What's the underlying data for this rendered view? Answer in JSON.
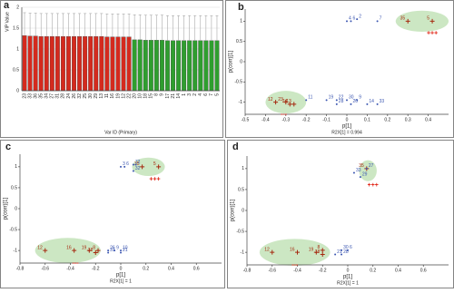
{
  "chart_data": [
    {
      "type": "bar",
      "panel": "a",
      "xlabel": "Var ID (Primary)",
      "ylabel": "VIP Value",
      "categories": [
        "23",
        "33",
        "36",
        "35",
        "34",
        "27",
        "31",
        "28",
        "24",
        "26",
        "32",
        "25",
        "30",
        "29",
        "13",
        "11",
        "16",
        "19",
        "12",
        "22",
        "20",
        "10",
        "18",
        "15",
        "8",
        "9",
        "17",
        "21",
        "14",
        "1",
        "3",
        "2",
        "4",
        "6",
        "7",
        "5"
      ],
      "series": [
        {
          "color": "#d42a1e",
          "values": [
            1.32,
            1.31,
            1.31,
            1.3,
            1.3,
            1.3,
            1.3,
            1.3,
            1.3,
            1.3,
            1.3,
            1.3,
            1.3,
            1.3,
            1.3,
            1.29,
            1.29,
            1.29,
            1.29,
            1.29,
            null,
            null,
            null,
            null,
            null,
            null,
            null,
            null,
            null,
            null,
            null,
            null,
            null,
            null,
            null,
            null
          ],
          "errors": [
            0.55,
            0.55,
            0.55,
            0.55,
            0.55,
            0.55,
            0.55,
            0.55,
            0.55,
            0.55,
            0.55,
            0.55,
            0.55,
            0.55,
            0.55,
            0.55,
            0.55,
            0.55,
            0.55,
            0.55,
            null,
            null,
            null,
            null,
            null,
            null,
            null,
            null,
            null,
            null,
            null,
            null,
            null,
            null,
            null,
            null
          ]
        },
        {
          "color": "#2f9e2f",
          "values": [
            null,
            null,
            null,
            null,
            null,
            null,
            null,
            null,
            null,
            null,
            null,
            null,
            null,
            null,
            null,
            null,
            null,
            null,
            null,
            null,
            1.22,
            1.22,
            1.21,
            1.21,
            1.21,
            1.21,
            1.2,
            1.2,
            1.2,
            1.2,
            1.2,
            1.2,
            1.2,
            1.2,
            1.2,
            1.2
          ],
          "errors": [
            null,
            null,
            null,
            null,
            null,
            null,
            null,
            null,
            null,
            null,
            null,
            null,
            null,
            null,
            null,
            null,
            null,
            null,
            null,
            null,
            0.6,
            0.6,
            0.6,
            0.6,
            0.6,
            0.6,
            0.6,
            0.6,
            0.6,
            0.6,
            0.6,
            0.6,
            0.6,
            0.6,
            0.6,
            0.6
          ]
        }
      ],
      "ylim": [
        0,
        2
      ],
      "yticks": [
        0,
        0.5,
        1,
        1.5,
        2
      ],
      "grid": true
    },
    {
      "type": "scatter",
      "panel": "b",
      "xlabel": "p[1]",
      "ylabel": "p(corr)[1]",
      "note": "R2X[1] = 0.994",
      "xlim": [
        -0.5,
        0.5
      ],
      "xticks": [
        -0.5,
        -0.4,
        -0.3,
        -0.2,
        -0.1,
        0,
        0.1,
        0.2,
        0.3,
        0.4
      ],
      "ylim": [
        -1.3,
        1.3
      ],
      "yticks": [
        -1,
        -0.5,
        0,
        0.5,
        1
      ],
      "annotations": [
        "+++",
        "---"
      ],
      "series": [
        {
          "color": "#a52a10",
          "marker": "cross",
          "x": [
            -0.35,
            -0.3,
            -0.28,
            -0.26,
            0.3,
            0.42
          ],
          "values": [
            -1,
            -1,
            -1.05,
            -1.05,
            1,
            1
          ],
          "labels": [
            "12",
            "23",
            "24",
            "13",
            "35",
            "5"
          ]
        },
        {
          "color": "#3a55b0",
          "marker": "dot",
          "x": [
            0.0,
            0.02,
            0.05,
            0.15,
            -0.2,
            -0.1,
            -0.05,
            0.0,
            0.05,
            0.1,
            0.15,
            -0.05,
            0.02
          ],
          "values": [
            1,
            1,
            1.05,
            1,
            -0.95,
            -0.95,
            -0.95,
            -0.95,
            -0.95,
            -1.05,
            -1.05,
            -1.05,
            -1.05
          ],
          "labels": [
            "4",
            "6",
            "2",
            "7",
            "11",
            "19",
            "22",
            "30",
            "9",
            "14",
            "33",
            "28",
            "20"
          ]
        }
      ]
    },
    {
      "type": "scatter",
      "panel": "c",
      "xlabel": "p[1]",
      "ylabel": "p(corr)[1]",
      "note": "R2X[1] = 1",
      "xlim": [
        -0.8,
        0.8
      ],
      "xticks": [
        -0.8,
        -0.6,
        -0.4,
        -0.2,
        0,
        0.2,
        0.4,
        0.6
      ],
      "ylim": [
        -1.3,
        1.3
      ],
      "yticks": [
        -1,
        -0.5,
        0,
        0.5,
        1
      ],
      "annotations": [
        "+++",
        "---"
      ],
      "series": [
        {
          "color": "#a52a10",
          "marker": "cross",
          "x": [
            -0.6,
            -0.37,
            -0.25,
            -0.18,
            -0.2,
            0.17,
            0.3
          ],
          "values": [
            -1,
            -1,
            -1,
            -1,
            -1.05,
            1,
            1
          ],
          "labels": [
            "12",
            "16",
            "19",
            "8",
            "18",
            "35",
            "5"
          ]
        },
        {
          "color": "#3a55b0",
          "marker": "dot",
          "x": [
            0.0,
            0.03,
            0.1,
            0.1,
            0.12,
            -0.1,
            -0.05,
            0.0,
            -0.1,
            0.0
          ],
          "values": [
            1,
            1,
            1.05,
            0.9,
            1.05,
            -1,
            -1,
            -1,
            -1.05,
            -1.05
          ],
          "labels": [
            "3",
            "6",
            "7",
            "32",
            "2",
            "26",
            "9",
            "10",
            "31",
            "21"
          ]
        }
      ]
    },
    {
      "type": "scatter",
      "panel": "d",
      "xlabel": "p[1]",
      "ylabel": "p(corr)[1]",
      "note": "R2X[1] = 1",
      "xlim": [
        -0.8,
        0.8
      ],
      "xticks": [
        -0.8,
        -0.6,
        -0.4,
        -0.2,
        0,
        0.2,
        0.4,
        0.6
      ],
      "ylim": [
        -1.3,
        1.3
      ],
      "yticks": [
        -1,
        -0.5,
        0,
        0.5,
        1
      ],
      "annotations": [
        "+++",
        "---"
      ],
      "series": [
        {
          "color": "#a52a10",
          "marker": "cross",
          "x": [
            -0.6,
            -0.4,
            -0.25,
            -0.2,
            -0.2,
            0.15
          ],
          "values": [
            -1,
            -1,
            -1,
            -0.95,
            -1.05,
            1
          ],
          "labels": [
            "12",
            "16",
            "19",
            "8",
            "18",
            "35"
          ]
        },
        {
          "color": "#3a55b0",
          "marker": "dot",
          "x": [
            0.05,
            0.1,
            0.15,
            0.0,
            -0.05,
            -0.1,
            -0.05
          ],
          "values": [
            0.9,
            0.8,
            1,
            -0.95,
            -0.95,
            -1.05,
            -1.05
          ],
          "labels": [
            "33",
            "29",
            "27",
            "6",
            "30",
            "21",
            "28"
          ]
        }
      ]
    }
  ]
}
